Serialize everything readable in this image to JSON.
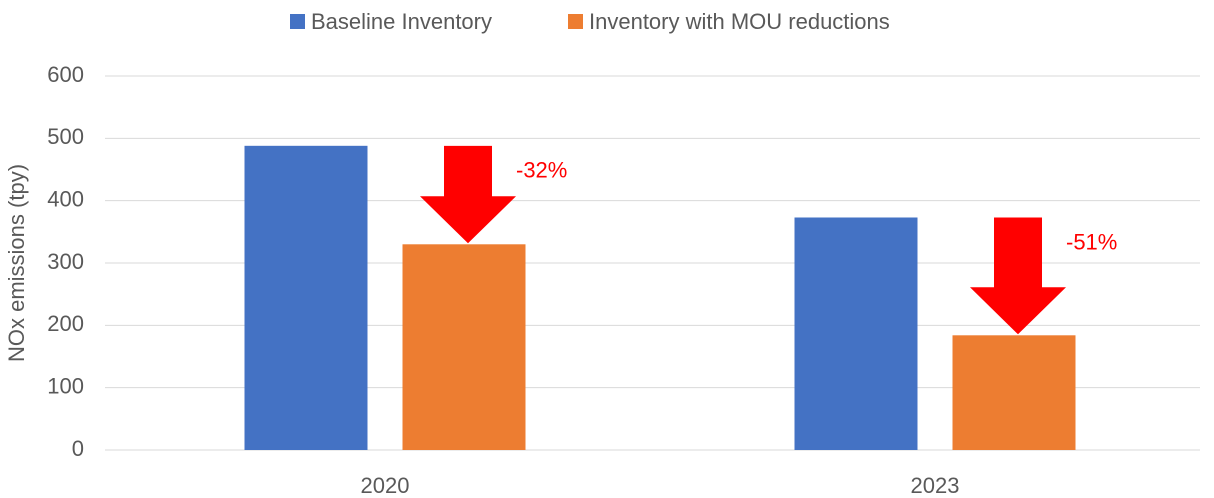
{
  "chart_data": {
    "type": "bar",
    "categories": [
      "2020",
      "2023"
    ],
    "series": [
      {
        "name": "Baseline Inventory",
        "color": "#4472c4",
        "values": [
          488,
          373
        ]
      },
      {
        "name": "Inventory with MOU reductions",
        "color": "#ed7d31",
        "values": [
          330,
          184
        ]
      }
    ],
    "ylabel": "NOx emissions (tpy)",
    "ylim": [
      0,
      600
    ],
    "yticks": [
      0,
      100,
      200,
      300,
      400,
      500,
      600
    ],
    "grid": true,
    "legend": "top",
    "annotations": [
      {
        "text": "-32%",
        "color": "#ff0000"
      },
      {
        "text": "-51%",
        "color": "#ff0000"
      }
    ]
  }
}
